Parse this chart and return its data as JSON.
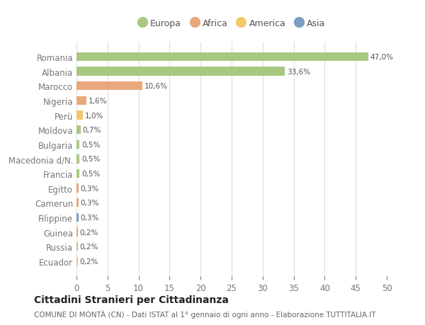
{
  "categories": [
    "Romania",
    "Albania",
    "Marocco",
    "Nigeria",
    "Perù",
    "Moldova",
    "Bulgaria",
    "Macedonia d/N.",
    "Francia",
    "Egitto",
    "Camerun",
    "Filippine",
    "Guinea",
    "Russia",
    "Ecuador"
  ],
  "values": [
    47.0,
    33.6,
    10.6,
    1.6,
    1.0,
    0.7,
    0.5,
    0.5,
    0.5,
    0.3,
    0.3,
    0.3,
    0.2,
    0.2,
    0.2
  ],
  "labels": [
    "47,0%",
    "33,6%",
    "10,6%",
    "1,6%",
    "1,0%",
    "0,7%",
    "0,5%",
    "0,5%",
    "0,5%",
    "0,3%",
    "0,3%",
    "0,3%",
    "0,2%",
    "0,2%",
    "0,2%"
  ],
  "continents": [
    "Europa",
    "Europa",
    "Africa",
    "Africa",
    "America",
    "Europa",
    "Europa",
    "Europa",
    "Europa",
    "Africa",
    "Africa",
    "Asia",
    "Africa",
    "Europa",
    "America"
  ],
  "continent_colors": {
    "Europa": "#a8c882",
    "Africa": "#e8a87c",
    "America": "#f0c96e",
    "Asia": "#7a9fc0"
  },
  "legend_items": [
    "Europa",
    "Africa",
    "America",
    "Asia"
  ],
  "background_color": "#ffffff",
  "grid_color": "#dddddd",
  "title": "Cittadini Stranieri per Cittadinanza",
  "subtitle": "COMUNE DI MONTÀ (CN) - Dati ISTAT al 1° gennaio di ogni anno - Elaborazione TUTTITALIA.IT",
  "xlim": [
    0,
    50
  ],
  "xticks": [
    0,
    5,
    10,
    15,
    20,
    25,
    30,
    35,
    40,
    45,
    50
  ],
  "bar_height": 0.6,
  "figsize": [
    6.0,
    4.6
  ],
  "dpi": 100
}
